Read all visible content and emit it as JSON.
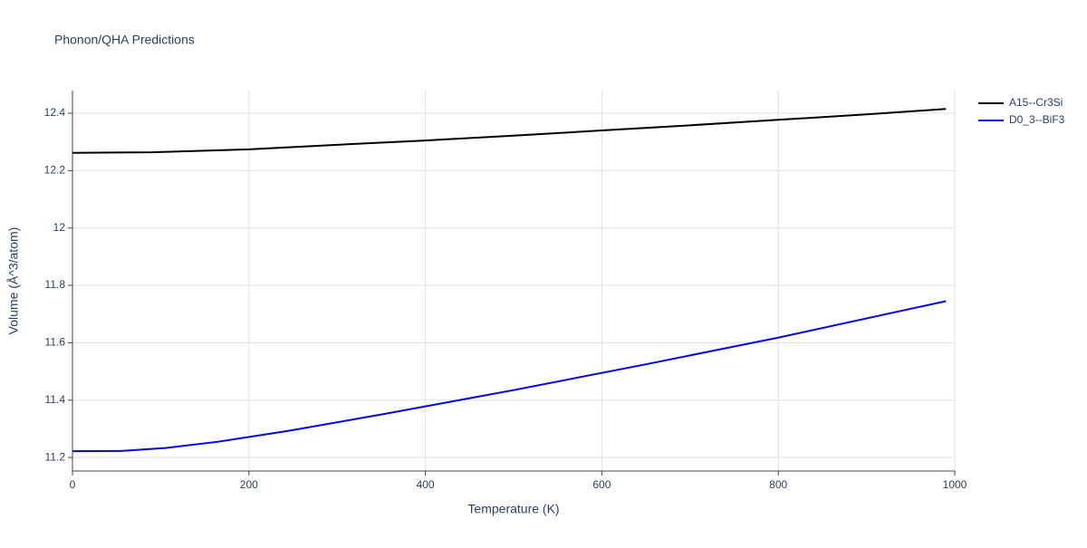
{
  "chart_data": {
    "type": "line",
    "title": "Phonon/QHA Predictions",
    "x_label": "Temperature (K)",
    "y_label": "Volume (Å^3/atom)",
    "xlim": [
      0,
      1000
    ],
    "xticks": [
      0,
      200,
      400,
      600,
      800,
      1000
    ],
    "ylim": [
      11.153,
      12.479
    ],
    "yticks": [
      11.2,
      11.4,
      11.6,
      11.8,
      12,
      12.2,
      12.4
    ],
    "grid": true,
    "legend": "right",
    "series": [
      {
        "name": "A15--Cr3Si",
        "color": "#000000",
        "x": [
          0,
          90,
          200,
          300,
          400,
          500,
          600,
          700,
          800,
          900,
          990
        ],
        "values": [
          12.262,
          12.264,
          12.274,
          12.29,
          12.305,
          12.322,
          12.34,
          12.358,
          12.377,
          12.396,
          12.415
        ]
      },
      {
        "name": "D0_3--BiF3",
        "color": "#0000ff",
        "x": [
          0,
          55,
          105,
          165,
          245,
          350,
          500,
          650,
          800,
          990
        ],
        "values": [
          11.222,
          11.223,
          11.233,
          11.255,
          11.293,
          11.35,
          11.435,
          11.525,
          11.618,
          11.745
        ]
      }
    ]
  }
}
